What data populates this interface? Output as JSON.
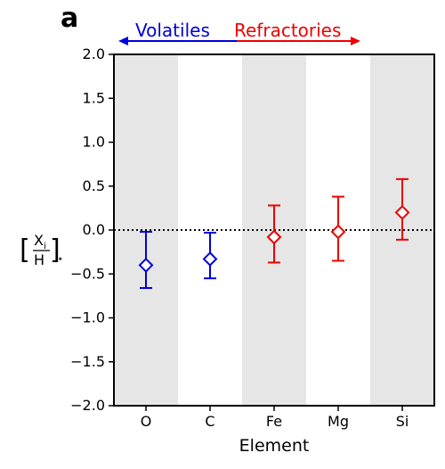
{
  "chart_data": {
    "type": "scatter",
    "panel_label": "a",
    "categories": [
      "O",
      "C",
      "Fe",
      "Mg",
      "Si"
    ],
    "values": [
      -0.4,
      -0.33,
      -0.08,
      -0.02,
      0.2
    ],
    "err_low": [
      -0.66,
      -0.55,
      -0.37,
      -0.35,
      -0.11
    ],
    "err_high": [
      -0.02,
      -0.03,
      0.28,
      0.38,
      0.58
    ],
    "colors": [
      "#0000dd",
      "#0000dd",
      "#ee0000",
      "#ee0000",
      "#ee0000"
    ],
    "xlabel": "Element",
    "ylabel": {
      "open": "[",
      "numerator": "X",
      "subscript": "i",
      "denominator": "H",
      "close": "]",
      "star": "⋆"
    },
    "ylim": [
      -2.0,
      2.0
    ],
    "yticks": [
      2.0,
      1.5,
      1.0,
      0.5,
      0.0,
      -0.5,
      -1.0,
      -1.5,
      -2.0
    ],
    "ytick_labels": [
      "2.0",
      "1.5",
      "1.0",
      "0.5",
      "0.0",
      "−0.5",
      "−1.0",
      "−1.5",
      "−2.0"
    ],
    "reference_line": 0.0,
    "shaded_bands": [
      0,
      2,
      4
    ],
    "groups": [
      {
        "label": "Volatiles",
        "color": "#0000dd",
        "arrow": "left"
      },
      {
        "label": "Refractories",
        "color": "#ee0000",
        "arrow": "right"
      }
    ]
  }
}
